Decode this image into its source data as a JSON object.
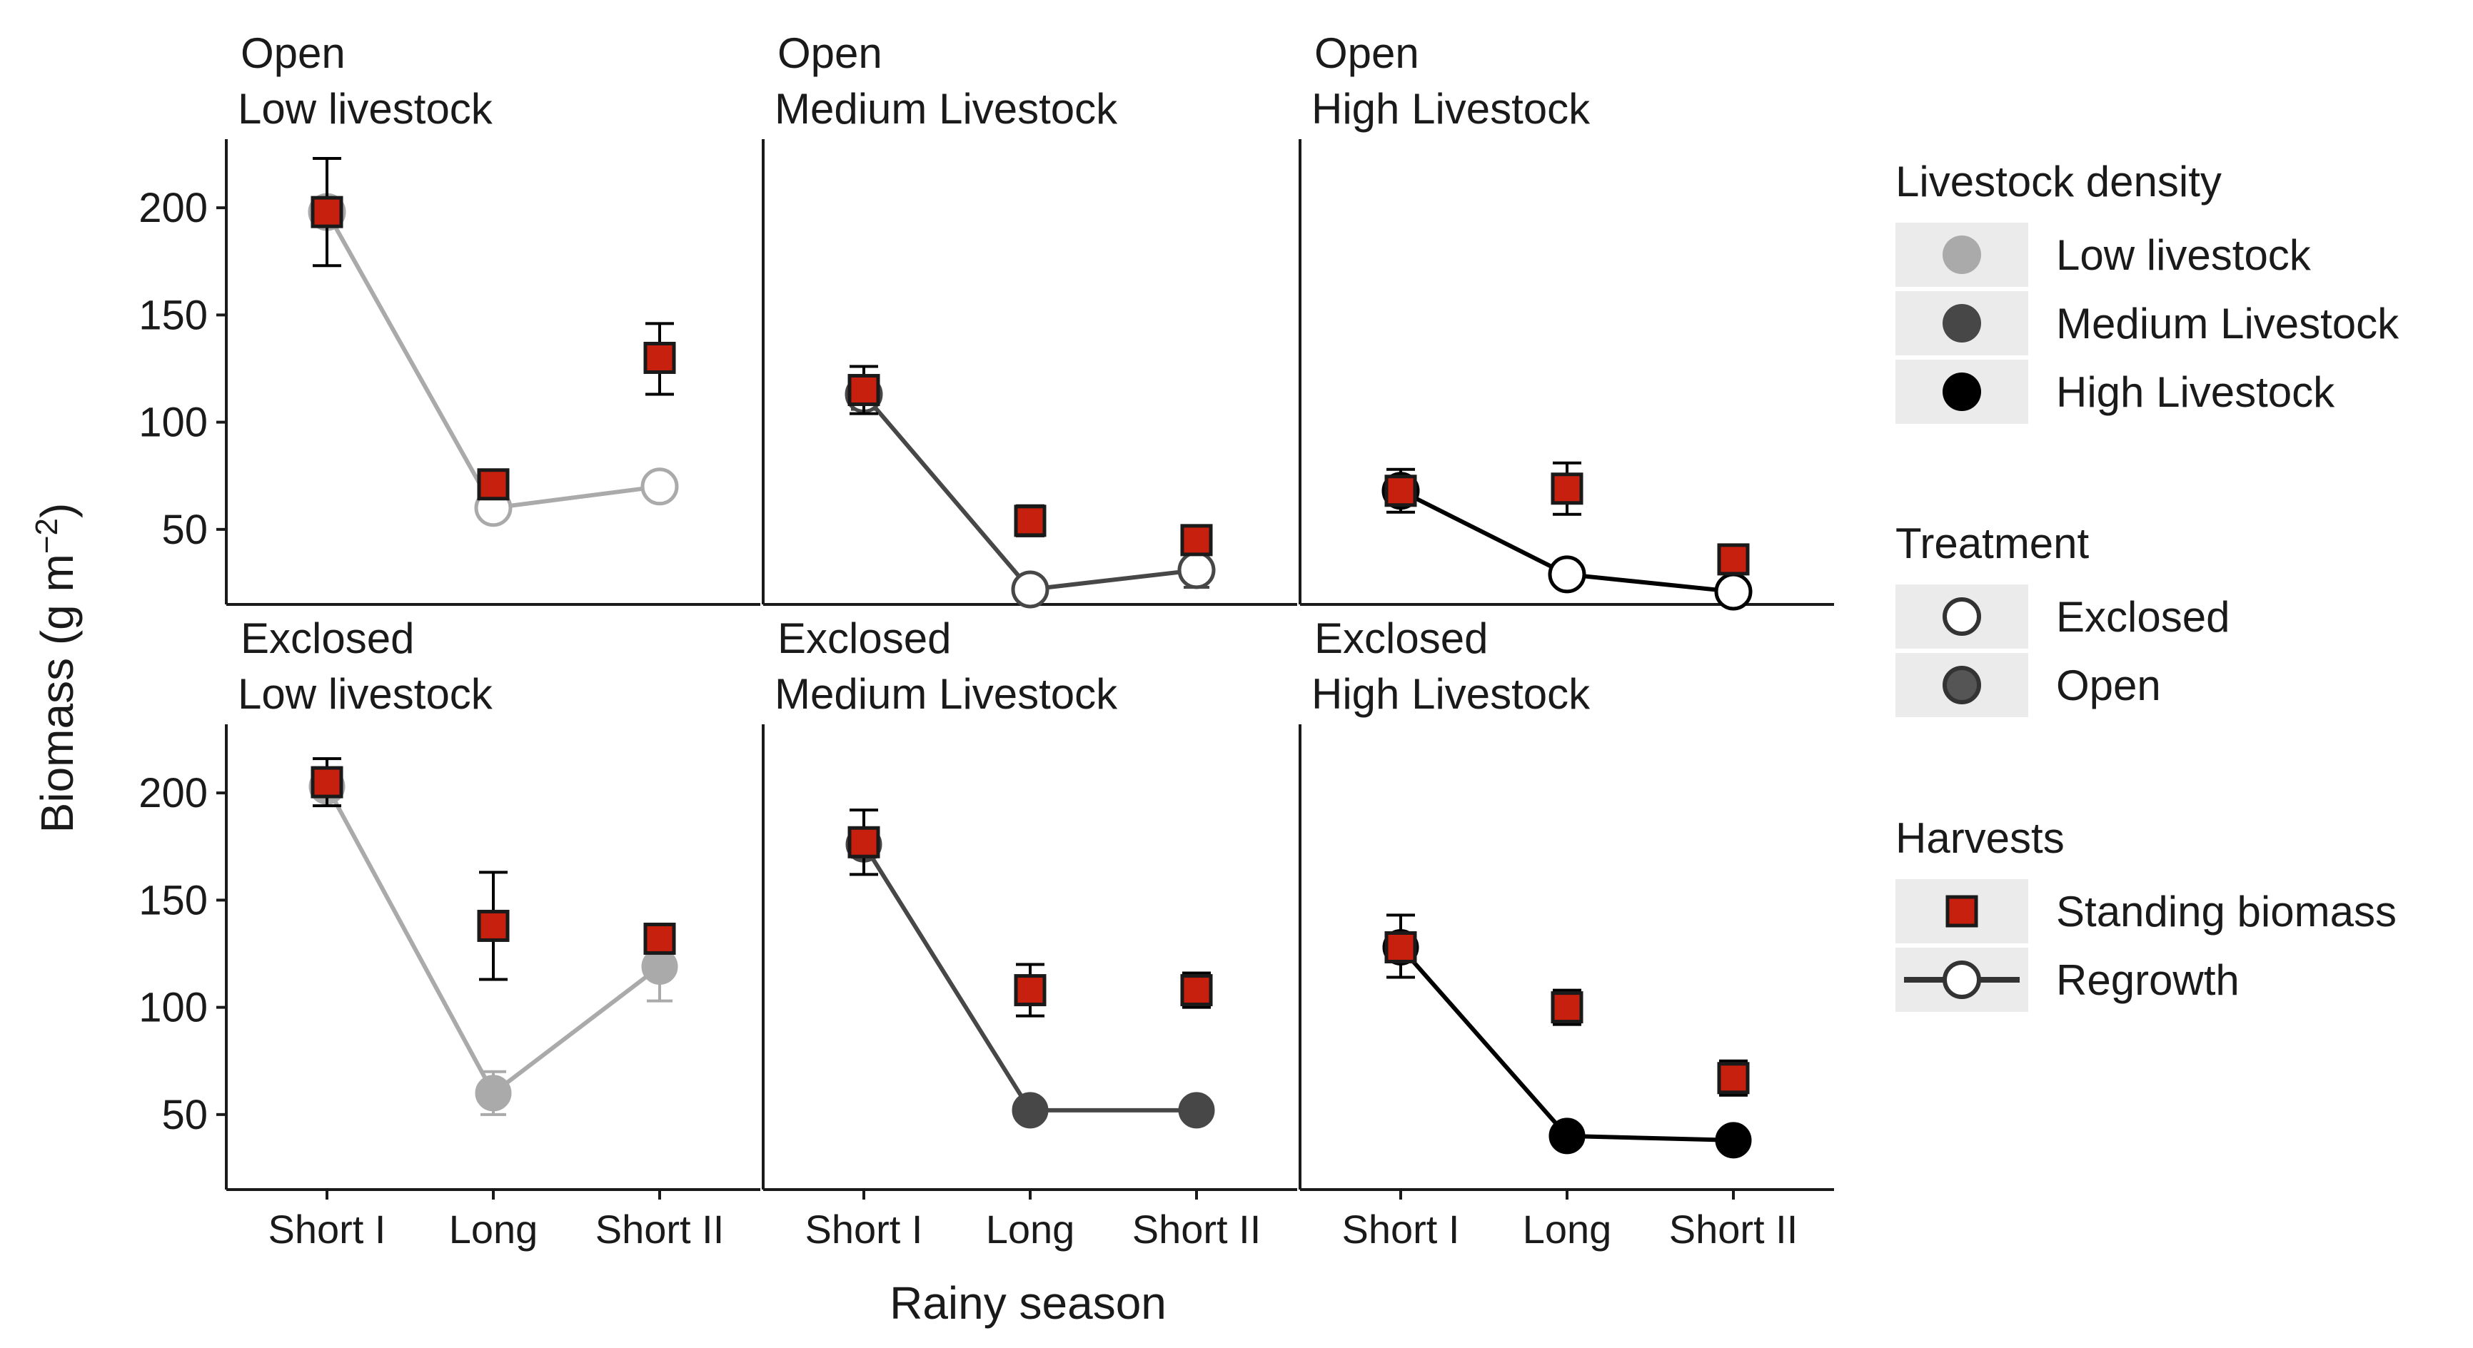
{
  "chart_data": {
    "type": "scatter",
    "xlabel": "Rainy season",
    "ylabel": "Biomass (g m",
    "ylabel_superscript": "−2",
    "ylabel_close": ")",
    "categories": [
      "Short I",
      "Long",
      "Short II"
    ],
    "yticks": [
      50,
      100,
      150,
      200
    ],
    "ylim": [
      15,
      232
    ],
    "grid": false,
    "colors": {
      "low": "#aaaaaa",
      "medium": "#474747",
      "high": "#000000",
      "standing_fill": "#c8200e",
      "standing_edge": "#1a1a1a",
      "errorbar": "#000000"
    },
    "panels": [
      {
        "treatment": "Open",
        "livestock": "Low livestock",
        "density": "low",
        "standing": [
          {
            "y": 198,
            "lo": 173,
            "hi": 223
          },
          {
            "y": 71,
            "lo": 67,
            "hi": 75
          },
          {
            "y": 130,
            "lo": 113,
            "hi": 146
          }
        ],
        "regrowth": [
          {
            "y": 198,
            "lo": 198,
            "hi": 198
          },
          {
            "y": 60,
            "lo": 56,
            "hi": 64
          },
          {
            "y": 70,
            "lo": 65,
            "hi": 75
          }
        ]
      },
      {
        "treatment": "Open",
        "livestock": "Medium Livestock",
        "density": "medium",
        "standing": [
          {
            "y": 115,
            "lo": 104,
            "hi": 126
          },
          {
            "y": 54,
            "lo": 47,
            "hi": 61
          },
          {
            "y": 45,
            "lo": 40,
            "hi": 50
          }
        ],
        "regrowth": [
          {
            "y": 113,
            "lo": 106,
            "hi": 120
          },
          {
            "y": 22,
            "lo": 20,
            "hi": 24
          },
          {
            "y": 31,
            "lo": 23,
            "hi": 39
          }
        ]
      },
      {
        "treatment": "Open",
        "livestock": "High Livestock",
        "density": "high",
        "standing": [
          {
            "y": 68,
            "lo": 58,
            "hi": 78
          },
          {
            "y": 69,
            "lo": 57,
            "hi": 81
          },
          {
            "y": 36,
            "lo": 32,
            "hi": 40
          }
        ],
        "regrowth": [
          {
            "y": 68,
            "lo": 62,
            "hi": 74
          },
          {
            "y": 29,
            "lo": 27,
            "hi": 31
          },
          {
            "y": 21,
            "lo": 19,
            "hi": 23
          }
        ]
      },
      {
        "treatment": "Exclosed",
        "livestock": "Low livestock",
        "density": "low",
        "standing": [
          {
            "y": 205,
            "lo": 194,
            "hi": 216
          },
          {
            "y": 138,
            "lo": 113,
            "hi": 163
          },
          {
            "y": 132,
            "lo": 126,
            "hi": 138
          }
        ],
        "regrowth": [
          {
            "y": 203,
            "lo": 199,
            "hi": 207
          },
          {
            "y": 60,
            "lo": 50,
            "hi": 70
          },
          {
            "y": 119,
            "lo": 103,
            "hi": 135
          }
        ]
      },
      {
        "treatment": "Exclosed",
        "livestock": "Medium Livestock",
        "density": "medium",
        "standing": [
          {
            "y": 177,
            "lo": 162,
            "hi": 192
          },
          {
            "y": 108,
            "lo": 96,
            "hi": 120
          },
          {
            "y": 108,
            "lo": 100,
            "hi": 116
          }
        ],
        "regrowth": [
          {
            "y": 176,
            "lo": 170,
            "hi": 182
          },
          {
            "y": 52,
            "lo": 48,
            "hi": 56
          },
          {
            "y": 52,
            "lo": 48,
            "hi": 56
          }
        ]
      },
      {
        "treatment": "Exclosed",
        "livestock": "High Livestock",
        "density": "high",
        "standing": [
          {
            "y": 128,
            "lo": 114,
            "hi": 143
          },
          {
            "y": 100,
            "lo": 92,
            "hi": 108
          },
          {
            "y": 67,
            "lo": 59,
            "hi": 75
          }
        ],
        "regrowth": [
          {
            "y": 128,
            "lo": 122,
            "hi": 134
          },
          {
            "y": 40,
            "lo": 37,
            "hi": 43
          },
          {
            "y": 38,
            "lo": 35,
            "hi": 41
          }
        ]
      }
    ],
    "legend": {
      "placement": "right",
      "groups": [
        {
          "title": "Livestock density",
          "kind": "density",
          "items": [
            {
              "label": "Low livestock",
              "key": "low"
            },
            {
              "label": "Medium Livestock",
              "key": "medium"
            },
            {
              "label": "High Livestock",
              "key": "high"
            }
          ]
        },
        {
          "title": "Treatment",
          "kind": "treatment",
          "items": [
            {
              "label": "Exclosed",
              "key": "exclosed"
            },
            {
              "label": "Open",
              "key": "open"
            }
          ]
        },
        {
          "title": "Harvests",
          "kind": "harvest",
          "items": [
            {
              "label": "Standing biomass",
              "key": "standing"
            },
            {
              "label": "Regrowth",
              "key": "regrowth"
            }
          ]
        }
      ]
    }
  }
}
